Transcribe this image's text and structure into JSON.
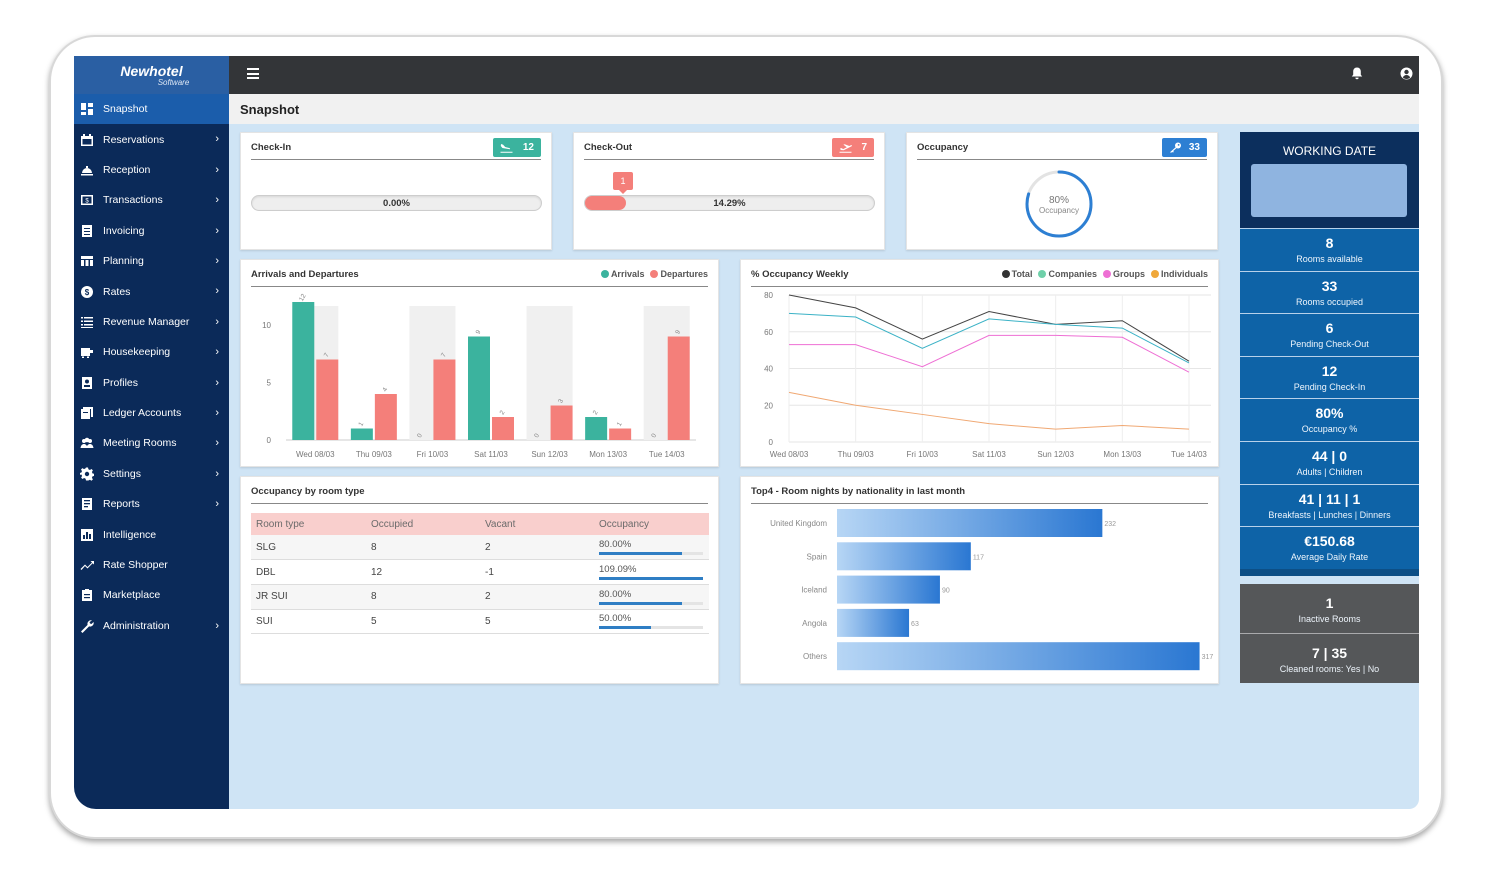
{
  "app": {
    "logo_title": "Newhotel",
    "logo_sub": "Software",
    "page_title": "Snapshot"
  },
  "sidebar": {
    "items": [
      {
        "label": "Snapshot",
        "icon": "dashboard-icon",
        "active": true
      },
      {
        "label": "Reservations",
        "icon": "calendar-icon"
      },
      {
        "label": "Reception",
        "icon": "service-bell-icon"
      },
      {
        "label": "Transactions",
        "icon": "cash-icon"
      },
      {
        "label": "Invoicing",
        "icon": "invoice-icon"
      },
      {
        "label": "Planning",
        "icon": "table-icon"
      },
      {
        "label": "Rates",
        "icon": "dollar-icon"
      },
      {
        "label": "Revenue Manager",
        "icon": "list-icon"
      },
      {
        "label": "Housekeeping",
        "icon": "cart-icon"
      },
      {
        "label": "Profiles",
        "icon": "profile-icon"
      },
      {
        "label": "Ledger Accounts",
        "icon": "ledger-icon"
      },
      {
        "label": "Meeting Rooms",
        "icon": "users-icon"
      },
      {
        "label": "Settings",
        "icon": "gear-icon"
      },
      {
        "label": "Reports",
        "icon": "report-icon"
      },
      {
        "label": "Intelligence",
        "icon": "bar-chart-icon"
      },
      {
        "label": "Rate Shopper",
        "icon": "trend-icon"
      },
      {
        "label": "Marketplace",
        "icon": "clipboard-icon"
      },
      {
        "label": "Administration",
        "icon": "wrench-icon"
      }
    ]
  },
  "checkin": {
    "title": "Check-In",
    "badge": "12",
    "percent_text": "0.00%",
    "percent": 0,
    "color": "#3bb39e"
  },
  "checkout": {
    "title": "Check-Out",
    "badge": "7",
    "percent_text": "14.29%",
    "percent": 14.29,
    "marker": "1",
    "color": "#f47f7a"
  },
  "occupancy": {
    "title": "Occupancy",
    "badge": "33",
    "gauge_value": "80%",
    "gauge_label": "Occupancy",
    "percent": 80,
    "color": "#2d7fd3"
  },
  "working_date": {
    "title": "WORKING DATE",
    "stats": [
      {
        "value": "8",
        "label": "Rooms available"
      },
      {
        "value": "33",
        "label": "Rooms occupied"
      },
      {
        "value": "6",
        "label": "Pending Check-Out"
      },
      {
        "value": "12",
        "label": "Pending Check-In"
      },
      {
        "value": "80%",
        "label": "Occupancy %"
      },
      {
        "value": "44 | 0",
        "label": "Adults | Children"
      },
      {
        "value": "41 | 11 | 1",
        "label": "Breakfasts | Lunches | Dinners"
      },
      {
        "value": "€150.68",
        "label": "Average Daily Rate"
      }
    ],
    "gray_stats": [
      {
        "value": "1",
        "label": "Inactive Rooms"
      },
      {
        "value": "7 | 35",
        "label": "Cleaned rooms: Yes | No"
      }
    ]
  },
  "arrivals_departures": {
    "title": "Arrivals and Departures",
    "legend": [
      {
        "name": "Arrivals",
        "color": "#3bb39e"
      },
      {
        "name": "Departures",
        "color": "#f47f7a"
      }
    ]
  },
  "occupancy_weekly": {
    "title": "% Occupancy Weekly",
    "legend": [
      {
        "name": "Total",
        "color": "#333333"
      },
      {
        "name": "Companies",
        "color": "#6fd0a9"
      },
      {
        "name": "Groups",
        "color": "#ee6fd4"
      },
      {
        "name": "Individuals",
        "color": "#f0a83a"
      }
    ]
  },
  "room_type": {
    "title": "Occupancy by room type",
    "headers": [
      "Room type",
      "Occupied",
      "Vacant",
      "Occupancy"
    ],
    "rows": [
      {
        "type": "SLG",
        "occupied": "8",
        "vacant": "2",
        "occupancy": "80.00%",
        "pct": 80
      },
      {
        "type": "DBL",
        "occupied": "12",
        "vacant": "-1",
        "occupancy": "109.09%",
        "pct": 100
      },
      {
        "type": "JR SUI",
        "occupied": "8",
        "vacant": "2",
        "occupancy": "80.00%",
        "pct": 80
      },
      {
        "type": "SUI",
        "occupied": "5",
        "vacant": "5",
        "occupancy": "50.00%",
        "pct": 50
      }
    ]
  },
  "nationality": {
    "title": "Top4 - Room nights by nationality in last month"
  },
  "chart_data": [
    {
      "type": "bar",
      "categories": [
        "Wed 08/03",
        "Thu 09/03",
        "Fri 10/03",
        "Sat 11/03",
        "Sun 12/03",
        "Mon 13/03",
        "Tue 14/03"
      ],
      "series": [
        {
          "name": "Arrivals",
          "values": [
            12,
            1,
            0,
            9,
            0,
            2,
            0
          ]
        },
        {
          "name": "Departures",
          "values": [
            7,
            4,
            7,
            2,
            3,
            1,
            9
          ]
        }
      ],
      "ylim": [
        0,
        12
      ],
      "yticks": [
        0,
        5,
        10
      ]
    },
    {
      "type": "line",
      "categories": [
        "Wed 08/03",
        "Thu 09/03",
        "Fri 10/03",
        "Sat 11/03",
        "Sun 12/03",
        "Mon 13/03",
        "Tue 14/03"
      ],
      "series": [
        {
          "name": "Total",
          "values": [
            80,
            73,
            56,
            71,
            64,
            66,
            44
          ]
        },
        {
          "name": "Companies",
          "values": [
            70,
            68,
            51,
            67,
            64,
            62,
            43
          ]
        },
        {
          "name": "Groups",
          "values": [
            53,
            53,
            41,
            58,
            58,
            57,
            38
          ]
        },
        {
          "name": "Individuals",
          "values": [
            27,
            20,
            15,
            10,
            7,
            9,
            7
          ]
        }
      ],
      "ylim": [
        0,
        80
      ],
      "yticks": [
        0,
        20,
        40,
        60,
        80
      ]
    },
    {
      "type": "bar",
      "orientation": "horizontal",
      "categories": [
        "United Kingdom",
        "Spain",
        "Iceland",
        "Angola",
        "Others"
      ],
      "values": [
        232,
        117,
        90,
        63,
        317
      ],
      "xlim": [
        0,
        320
      ]
    }
  ]
}
